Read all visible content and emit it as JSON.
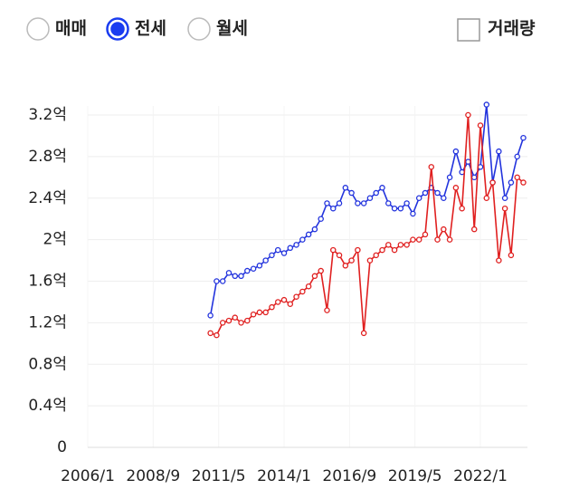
{
  "controls": {
    "options": [
      "매매",
      "전세",
      "월세"
    ],
    "selected": 1,
    "checkbox": "거래량"
  },
  "chart_data": {
    "type": "line",
    "x": [
      "2011/1",
      "2011/4",
      "2011/7",
      "2011/10",
      "2012/1",
      "2012/4",
      "2012/7",
      "2012/10",
      "2013/1",
      "2013/4",
      "2013/7",
      "2013/10",
      "2014/1",
      "2014/4",
      "2014/7",
      "2014/10",
      "2015/1",
      "2015/4",
      "2015/7",
      "2015/10",
      "2016/1",
      "2016/4",
      "2016/7",
      "2016/10",
      "2017/1",
      "2017/4",
      "2017/7",
      "2017/10",
      "2018/1",
      "2018/4",
      "2018/7",
      "2018/10",
      "2019/1",
      "2019/4",
      "2019/7",
      "2019/10",
      "2020/1",
      "2020/4",
      "2020/7",
      "2020/10",
      "2021/1",
      "2021/4",
      "2021/7",
      "2021/10",
      "2022/1",
      "2022/4",
      "2022/7",
      "2022/10",
      "2023/1",
      "2023/4",
      "2023/7",
      "2023/10"
    ],
    "series": [
      {
        "color": "#2233dd",
        "values": [
          1.27,
          1.6,
          1.6,
          1.68,
          1.65,
          1.65,
          1.7,
          1.72,
          1.75,
          1.8,
          1.85,
          1.9,
          1.87,
          1.92,
          1.95,
          2.0,
          2.05,
          2.1,
          2.2,
          2.35,
          2.3,
          2.35,
          2.5,
          2.45,
          2.35,
          2.35,
          2.4,
          2.45,
          2.5,
          2.35,
          2.3,
          2.3,
          2.35,
          2.25,
          2.4,
          2.45,
          2.5,
          2.45,
          2.4,
          2.6,
          2.85,
          2.65,
          2.75,
          2.6,
          2.7,
          3.3,
          2.55,
          2.85,
          2.4,
          2.55,
          2.8,
          2.98
        ]
      },
      {
        "color": "#e02020",
        "values": [
          1.1,
          1.08,
          1.2,
          1.22,
          1.25,
          1.2,
          1.22,
          1.28,
          1.3,
          1.3,
          1.35,
          1.4,
          1.42,
          1.38,
          1.45,
          1.5,
          1.55,
          1.65,
          1.7,
          1.32,
          1.9,
          1.85,
          1.75,
          1.8,
          1.9,
          1.1,
          1.8,
          1.85,
          1.9,
          1.95,
          1.9,
          1.95,
          1.95,
          2.0,
          2.0,
          2.05,
          2.7,
          2.0,
          2.1,
          2.0,
          2.5,
          2.3,
          3.2,
          2.1,
          3.1,
          2.4,
          2.55,
          1.8,
          2.3,
          1.85,
          2.6,
          2.55
        ]
      }
    ],
    "xlim": [
      "2006/1",
      "2023/12"
    ],
    "xticks": [
      "2006/1",
      "2008/9",
      "2011/5",
      "2014/1",
      "2016/9",
      "2019/5",
      "2022/1"
    ],
    "ylim": [
      0,
      3.2
    ],
    "yticks": [
      0,
      {
        "value": 0.4,
        "label": "0.4억"
      },
      {
        "value": 0.8,
        "label": "0.8억"
      },
      {
        "value": 1.2,
        "label": "1.2억"
      },
      {
        "value": 1.6,
        "label": "1.6억"
      },
      {
        "value": 2,
        "label": "2억"
      },
      {
        "value": 2.4,
        "label": "2.4억"
      },
      {
        "value": 2.8,
        "label": "2.8억"
      },
      {
        "value": 3.2,
        "label": "3.2억"
      }
    ],
    "grid": true
  }
}
